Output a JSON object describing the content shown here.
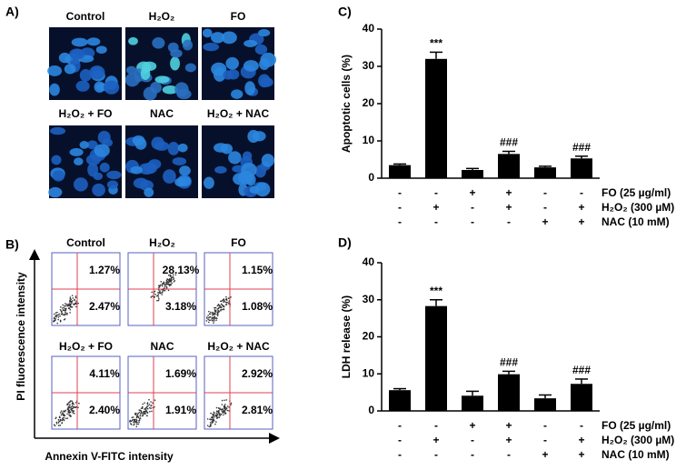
{
  "panel_a": {
    "label": "A)",
    "images": [
      "Control",
      "H₂O₂",
      "FO",
      "H₂O₂ + FO",
      "NAC",
      "H₂O₂ + NAC"
    ]
  },
  "panel_b": {
    "label": "B)",
    "y_axis_label": "PI fluorescence intensity",
    "x_axis_label": "Annexin V-FITC intensity",
    "plots": [
      {
        "title": "Control",
        "upper_right": "1.27%",
        "lower_right": "2.47%"
      },
      {
        "title": "H₂O₂",
        "upper_right": "28.13%",
        "lower_right": "3.18%"
      },
      {
        "title": "FO",
        "upper_right": "1.15%",
        "lower_right": "1.08%"
      },
      {
        "title": "H₂O₂ + FO",
        "upper_right": "4.11%",
        "lower_right": "2.40%"
      },
      {
        "title": "NAC",
        "upper_right": "1.69%",
        "lower_right": "1.91%"
      },
      {
        "title": "H₂O₂ + NAC",
        "upper_right": "2.92%",
        "lower_right": "2.81%"
      }
    ]
  },
  "chart_data": [
    {
      "type": "bar",
      "panel_label": "C)",
      "y_label": "Apoptotic cells (%)",
      "color": "#000000",
      "values": [
        3.5,
        32,
        2.2,
        6.5,
        2.9,
        5.3
      ],
      "errors": [
        0.3,
        1.8,
        0.4,
        0.7,
        0.3,
        0.6
      ],
      "value_annotations": [
        null,
        "***",
        null,
        "###",
        null,
        "###"
      ],
      "ylim": [
        0,
        40
      ],
      "yticks": [
        0,
        10,
        20,
        30,
        40
      ],
      "conditions": [
        {
          "label": "FO (25 µg/ml)",
          "signs": [
            "-",
            "-",
            "+",
            "+",
            "-",
            "-"
          ]
        },
        {
          "label": "H₂O₂ (300 µM)",
          "signs": [
            "-",
            "+",
            "-",
            "+",
            "-",
            "+"
          ]
        },
        {
          "label": "NAC (10 mM)",
          "signs": [
            "-",
            "-",
            "-",
            "-",
            "+",
            "+"
          ]
        }
      ]
    },
    {
      "type": "bar",
      "panel_label": "D)",
      "y_label": "LDH release (%)",
      "color": "#000000",
      "values": [
        5.6,
        28.3,
        4.1,
        9.9,
        3.4,
        7.3
      ],
      "errors": [
        0.4,
        1.7,
        1.2,
        0.8,
        0.9,
        1.3
      ],
      "value_annotations": [
        null,
        "***",
        null,
        "###",
        null,
        "###"
      ],
      "ylim": [
        0,
        40
      ],
      "yticks": [
        0,
        10,
        20,
        30,
        40
      ],
      "conditions": [
        {
          "label": "FO (25 µg/ml)",
          "signs": [
            "-",
            "-",
            "+",
            "+",
            "-",
            "-"
          ]
        },
        {
          "label": "H₂O₂ (300 µM)",
          "signs": [
            "-",
            "+",
            "-",
            "+",
            "-",
            "+"
          ]
        },
        {
          "label": "NAC (10 mM)",
          "signs": [
            "-",
            "-",
            "-",
            "-",
            "+",
            "+"
          ]
        }
      ]
    }
  ]
}
